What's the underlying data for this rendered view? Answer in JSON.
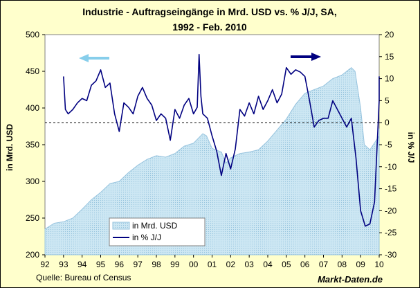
{
  "chart_data": {
    "type": "area",
    "title_line1": "Industrie - Auftragseingänge in Mrd. USD vs. % J/J, SA,",
    "title_line2": "1992 - Feb. 2010",
    "ylabel_left": "in Mrd. USD",
    "ylabel_right": "in % J/J",
    "source": "Quelle: Bureau of Census",
    "brand": "Markt-Daten.de",
    "x_tick_labels": [
      "92",
      "93",
      "94",
      "95",
      "96",
      "97",
      "98",
      "99",
      "00",
      "01",
      "02",
      "03",
      "04",
      "05",
      "06",
      "07",
      "08",
      "09",
      "10"
    ],
    "xlim": [
      1992,
      2010
    ],
    "left_axis": {
      "ylim": [
        200,
        500
      ],
      "ticks": [
        200,
        250,
        300,
        350,
        400,
        450,
        500
      ]
    },
    "right_axis": {
      "ylim": [
        -30,
        20
      ],
      "ticks": [
        -30,
        -25,
        -20,
        -15,
        -10,
        -5,
        0,
        5,
        10,
        15,
        20
      ]
    },
    "legend": {
      "placement": "bottom-center",
      "entries": [
        "in Mrd. USD",
        "in % J/J"
      ]
    },
    "colors": {
      "background": "#ffffcc",
      "plot_area": "#ffffff",
      "area_fill": "#cde7f3",
      "area_edge": "#96c3de",
      "line": "#000080",
      "arrow_left": "#87ceeb",
      "arrow_right": "#000080",
      "zero_line": "#000000"
    },
    "series": [
      {
        "name": "in Mrd. USD",
        "axis": "left",
        "kind": "area",
        "x": [
          1992.0,
          1992.5,
          1993.0,
          1993.5,
          1994.0,
          1994.5,
          1995.0,
          1995.5,
          1996.0,
          1996.5,
          1997.0,
          1997.5,
          1998.0,
          1998.5,
          1999.0,
          1999.5,
          2000.0,
          2000.5,
          2000.7,
          2001.0,
          2001.5,
          2001.75,
          2002.0,
          2002.5,
          2003.0,
          2003.5,
          2004.0,
          2004.5,
          2005.0,
          2005.5,
          2006.0,
          2006.5,
          2007.0,
          2007.5,
          2008.0,
          2008.5,
          2008.7,
          2009.0,
          2009.2,
          2009.5,
          2010.0,
          2010.1
        ],
        "y": [
          235,
          243,
          245,
          250,
          262,
          275,
          285,
          297,
          300,
          312,
          322,
          330,
          335,
          333,
          338,
          348,
          352,
          365,
          362,
          345,
          340,
          325,
          332,
          338,
          340,
          343,
          355,
          370,
          385,
          405,
          420,
          425,
          430,
          440,
          445,
          455,
          450,
          400,
          350,
          343,
          362,
          372
        ]
      },
      {
        "name": "in % J/J",
        "axis": "right",
        "kind": "line",
        "x": [
          1993.0,
          1993.1,
          1993.25,
          1993.5,
          1993.75,
          1994.0,
          1994.25,
          1994.5,
          1994.75,
          1995.0,
          1995.25,
          1995.5,
          1995.75,
          1996.0,
          1996.25,
          1996.5,
          1996.75,
          1997.0,
          1997.25,
          1997.5,
          1997.75,
          1998.0,
          1998.25,
          1998.5,
          1998.75,
          1999.0,
          1999.25,
          1999.5,
          1999.75,
          2000.0,
          2000.2,
          2000.3,
          2000.4,
          2000.5,
          2000.75,
          2001.0,
          2001.25,
          2001.5,
          2001.75,
          2002.0,
          2002.25,
          2002.5,
          2002.75,
          2003.0,
          2003.25,
          2003.5,
          2003.75,
          2004.0,
          2004.25,
          2004.5,
          2004.75,
          2005.0,
          2005.25,
          2005.5,
          2005.75,
          2006.0,
          2006.25,
          2006.5,
          2006.75,
          2007.0,
          2007.25,
          2007.5,
          2007.75,
          2008.0,
          2008.25,
          2008.5,
          2008.75,
          2009.0,
          2009.25,
          2009.5,
          2009.75,
          2010.0,
          2010.1
        ],
        "y": [
          10.5,
          3.0,
          2.0,
          3.0,
          4.5,
          5.5,
          5.0,
          8.5,
          9.5,
          12.0,
          8.0,
          9.0,
          2.0,
          -2.0,
          4.5,
          3.5,
          2.0,
          6.0,
          8.0,
          5.5,
          4.0,
          0.5,
          2.0,
          1.0,
          -4.0,
          3.0,
          1.0,
          4.0,
          5.5,
          2.0,
          3.5,
          15.5,
          6.0,
          2.0,
          1.0,
          -3.0,
          -6.5,
          -12.0,
          -7.0,
          -10.5,
          -6.0,
          3.0,
          1.5,
          4.5,
          2.0,
          6.0,
          3.0,
          5.0,
          7.5,
          4.5,
          6.5,
          12.5,
          11.0,
          12.0,
          11.5,
          10.5,
          5.0,
          -1.0,
          0.5,
          1.0,
          1.0,
          5.0,
          3.0,
          1.0,
          -1.0,
          1.0,
          -8.0,
          -20.0,
          -23.5,
          -23.0,
          -18.0,
          5.0,
          10.5
        ]
      }
    ]
  }
}
